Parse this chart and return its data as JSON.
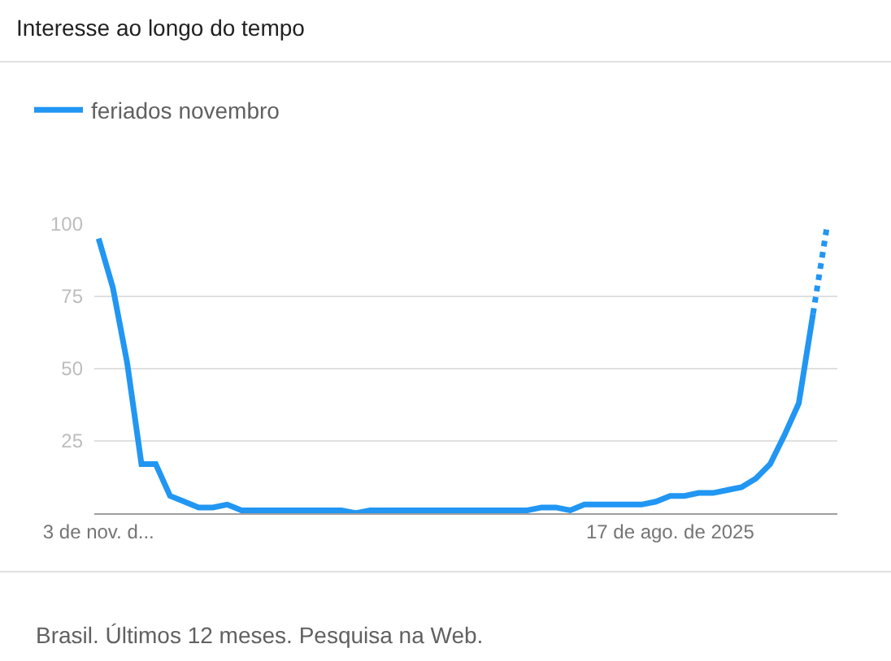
{
  "chart_data": {
    "type": "line",
    "title": "Interesse ao longo do tempo",
    "categories": [
      "3 de nov. d...",
      null,
      null,
      null,
      null,
      null,
      null,
      null,
      null,
      null,
      null,
      null,
      null,
      null,
      null,
      null,
      null,
      null,
      null,
      null,
      null,
      null,
      null,
      null,
      null,
      null,
      null,
      null,
      null,
      null,
      null,
      null,
      null,
      null,
      null,
      null,
      null,
      null,
      null,
      null,
      "17 de ago. de 2025",
      null,
      null,
      null,
      null,
      null,
      null,
      null,
      null,
      null,
      null,
      null
    ],
    "series": [
      {
        "name": "feriados novembro",
        "color": "#2196f3",
        "line_style": "solid",
        "values": [
          95,
          78,
          52,
          17,
          17,
          6,
          4,
          2,
          2,
          3,
          1,
          1,
          1,
          1,
          1,
          1,
          1,
          1,
          0,
          1,
          1,
          1,
          1,
          1,
          1,
          1,
          1,
          1,
          1,
          1,
          1,
          2,
          2,
          1,
          3,
          3,
          3,
          3,
          3,
          4,
          6,
          6,
          7,
          7,
          8,
          9,
          12,
          17,
          27,
          38,
          69,
          null
        ]
      },
      {
        "color": "#2196f3",
        "line_style": "dotted",
        "values": [
          null,
          null,
          null,
          null,
          null,
          null,
          null,
          null,
          null,
          null,
          null,
          null,
          null,
          null,
          null,
          null,
          null,
          null,
          null,
          null,
          null,
          null,
          null,
          null,
          null,
          null,
          null,
          null,
          null,
          null,
          null,
          null,
          null,
          null,
          null,
          null,
          null,
          null,
          null,
          null,
          null,
          null,
          null,
          null,
          null,
          null,
          null,
          null,
          null,
          null,
          69,
          100
        ]
      }
    ],
    "ylim": [
      0,
      100
    ],
    "yticks": [
      {
        "value": 0,
        "label": null
      },
      25,
      50,
      75,
      100
    ],
    "grid": "y",
    "legend": "top left",
    "marker": "none",
    "annotations": [
      "Brasil. Últimos 12 meses. Pesquisa na Web."
    ]
  }
}
